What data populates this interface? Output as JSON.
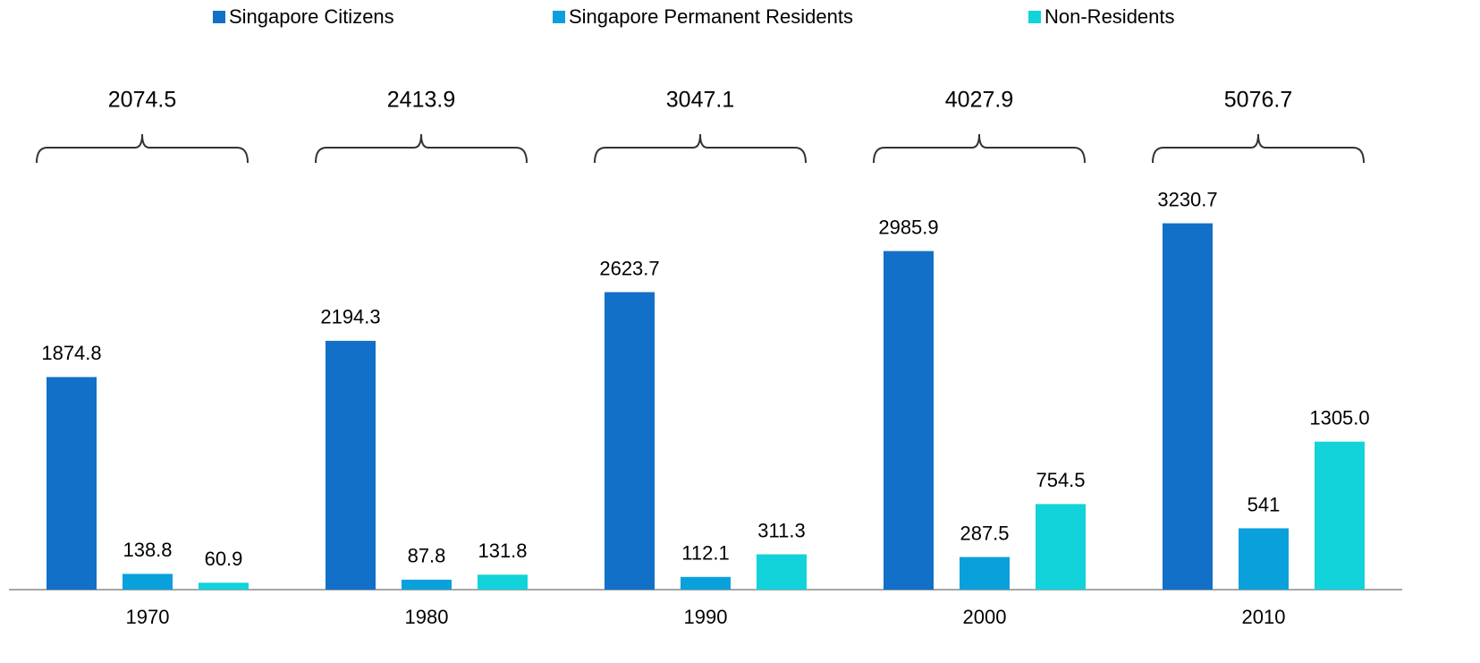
{
  "chart_data": {
    "type": "bar",
    "categories": [
      "1970",
      "1980",
      "1990",
      "2000",
      "2010"
    ],
    "series": [
      {
        "name": "Singapore Citizens",
        "color": "#1270c8",
        "values": [
          1874.8,
          2194.3,
          2623.7,
          2985.9,
          3230.7
        ]
      },
      {
        "name": "Singapore Permanent Residents",
        "color": "#0aa0dc",
        "values": [
          138.8,
          87.8,
          112.1,
          287.5,
          541.0
        ]
      },
      {
        "name": "Non-Residents",
        "color": "#12d2da",
        "values": [
          60.9,
          131.8,
          311.3,
          754.5,
          1305.0
        ],
        "value_labels": [
          "60.9",
          "131.8",
          "311.3",
          "754.5",
          "1305.0"
        ]
      }
    ],
    "totals": [
      2074.5,
      2413.9,
      3047.1,
      4027.9,
      5076.7
    ],
    "ylim": [
      0,
      5200
    ],
    "legend": "top"
  }
}
